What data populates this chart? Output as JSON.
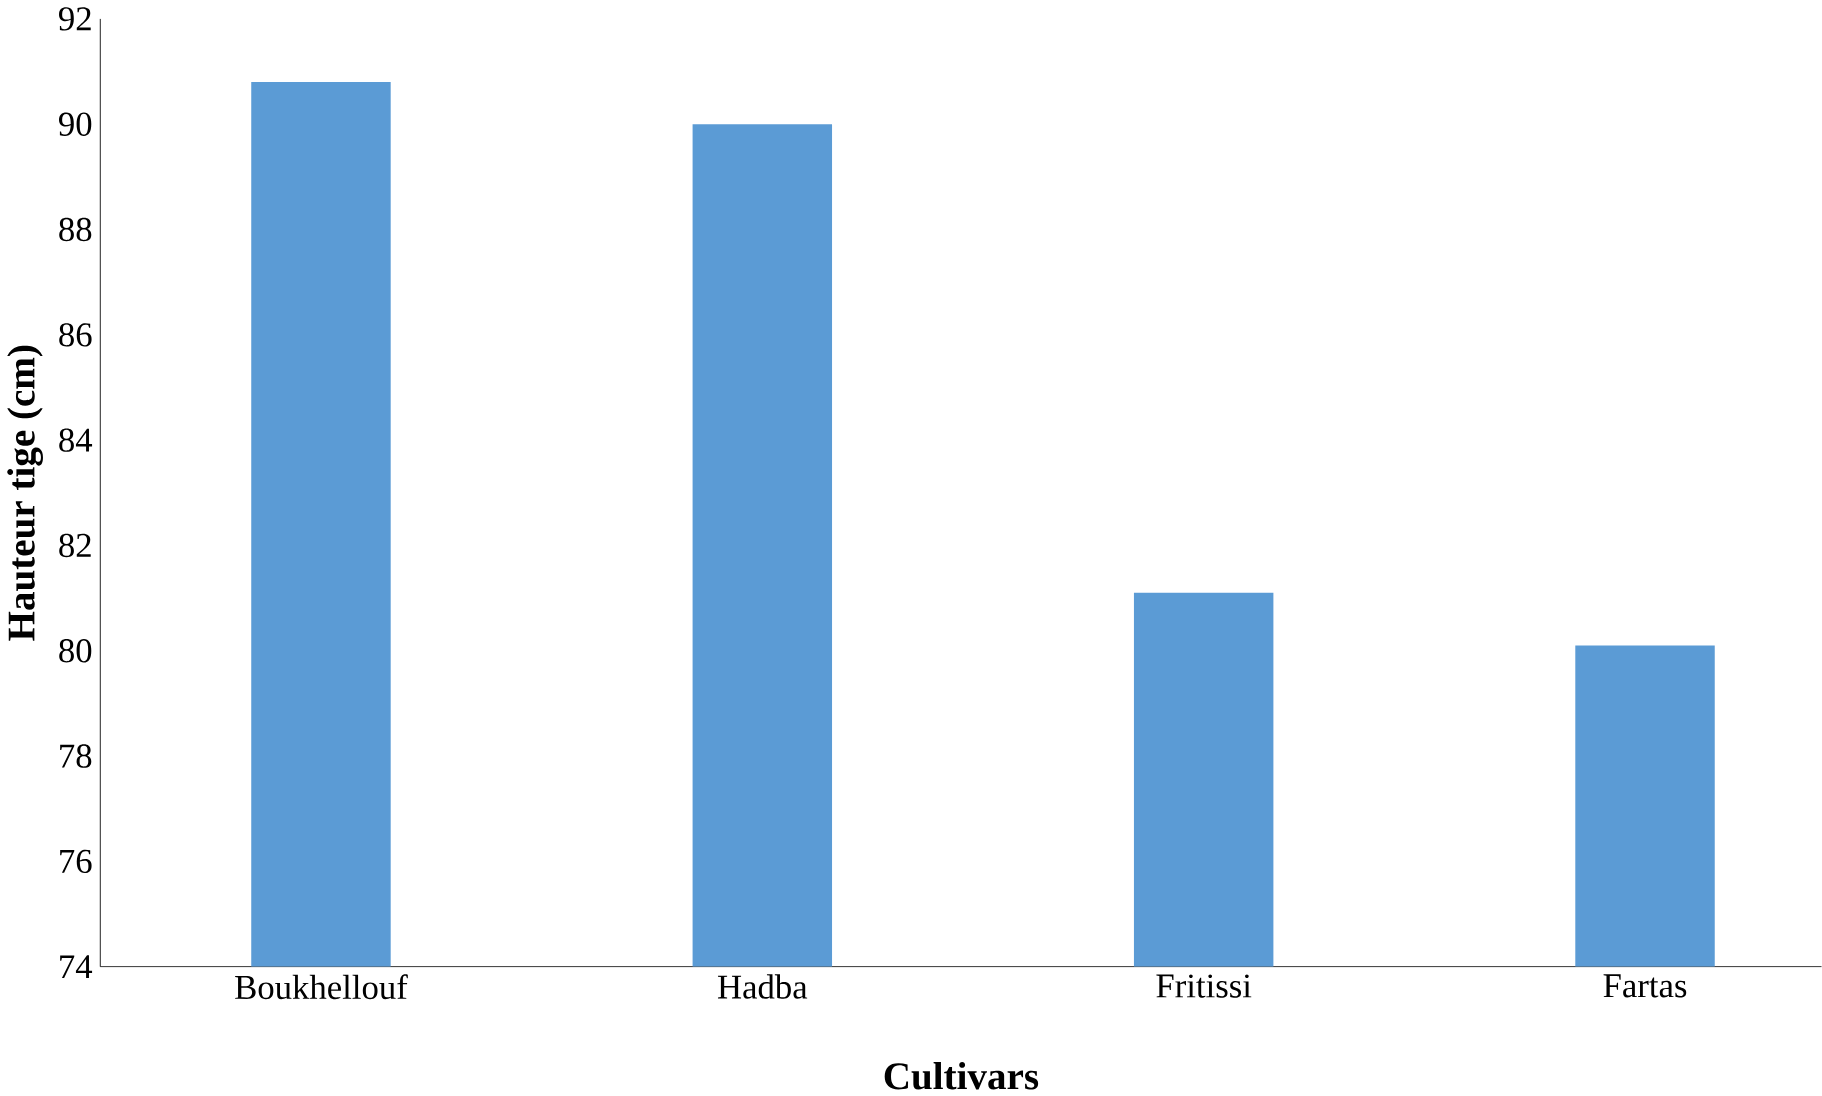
{
  "chart_data": {
    "type": "bar",
    "xlabel": "Cultivars",
    "ylabel": "Hauteur tige (cm)",
    "categories": [
      "Boukhellouf",
      "Hadba",
      "Fritissi",
      "Fartas"
    ],
    "values": [
      90.8,
      90.0,
      81.1,
      80.1
    ],
    "color": "#5b9bd5",
    "ylim": [
      74,
      92
    ],
    "yticks": [
      74,
      76,
      78,
      80,
      82,
      84,
      86,
      88,
      90,
      92
    ],
    "grid": false
  }
}
